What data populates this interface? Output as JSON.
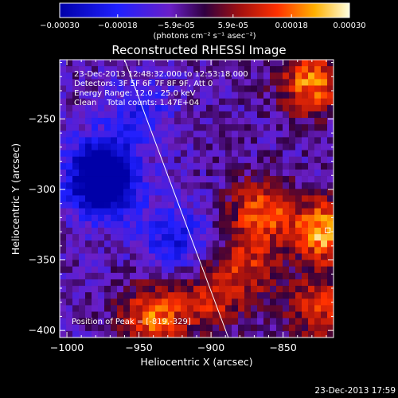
{
  "chart_data": {
    "type": "heatmap",
    "title": "Reconstructed RHESSI Image",
    "xlabel": "Heliocentric X (arcsec)",
    "ylabel": "Heliocentric Y (arcsec)",
    "xlim": [
      -1005,
      -815
    ],
    "ylim": [
      -405,
      -208
    ],
    "x_ticks": [
      -1000,
      -950,
      -900,
      -850
    ],
    "y_ticks": [
      -250,
      -300,
      -350,
      -400
    ],
    "colorbar": {
      "min": -0.0003,
      "max": 0.0003,
      "ticks": [
        "-0.00030",
        "-0.00018",
        "-5.9e-05",
        "5.9e-05",
        "0.00018",
        "0.00030"
      ],
      "label": "(photons cm⁻² s⁻¹ asec⁻²)"
    },
    "annotations": [
      "23-Dec-2013 12:48:32.000 to 12:53:18.000",
      "Detectors: 3F 5F 6F 7F 8F 9F, Att 0",
      "Energy Range: 12.0 - 25.0 keV",
      "Clean    Total counts: 1.47E+04"
    ],
    "peak_label": "Position of Peak = [-819,-329]",
    "peak": [
      -819,
      -329
    ],
    "limb_line": [
      [
        -960,
        -208
      ],
      [
        -888,
        -405
      ]
    ],
    "sources_approx": [
      {
        "x": -865,
        "y": -315,
        "value": 0.00022
      },
      {
        "x": -820,
        "y": -330,
        "value": 0.0003
      },
      {
        "x": -830,
        "y": -225,
        "value": 0.00025
      },
      {
        "x": -940,
        "y": -390,
        "value": 0.00024
      },
      {
        "x": -900,
        "y": -380,
        "value": 0.00015
      },
      {
        "x": -825,
        "y": -385,
        "value": 0.00018
      },
      {
        "x": -875,
        "y": -355,
        "value": 0.00016
      },
      {
        "x": -975,
        "y": -285,
        "value": -0.00025
      },
      {
        "x": -975,
        "y": -300,
        "value": -0.00024
      },
      {
        "x": -925,
        "y": -335,
        "value": -0.00016
      },
      {
        "x": -950,
        "y": -245,
        "value": -0.00012
      }
    ]
  },
  "footer_date": "23-Dec-2013 17:59"
}
